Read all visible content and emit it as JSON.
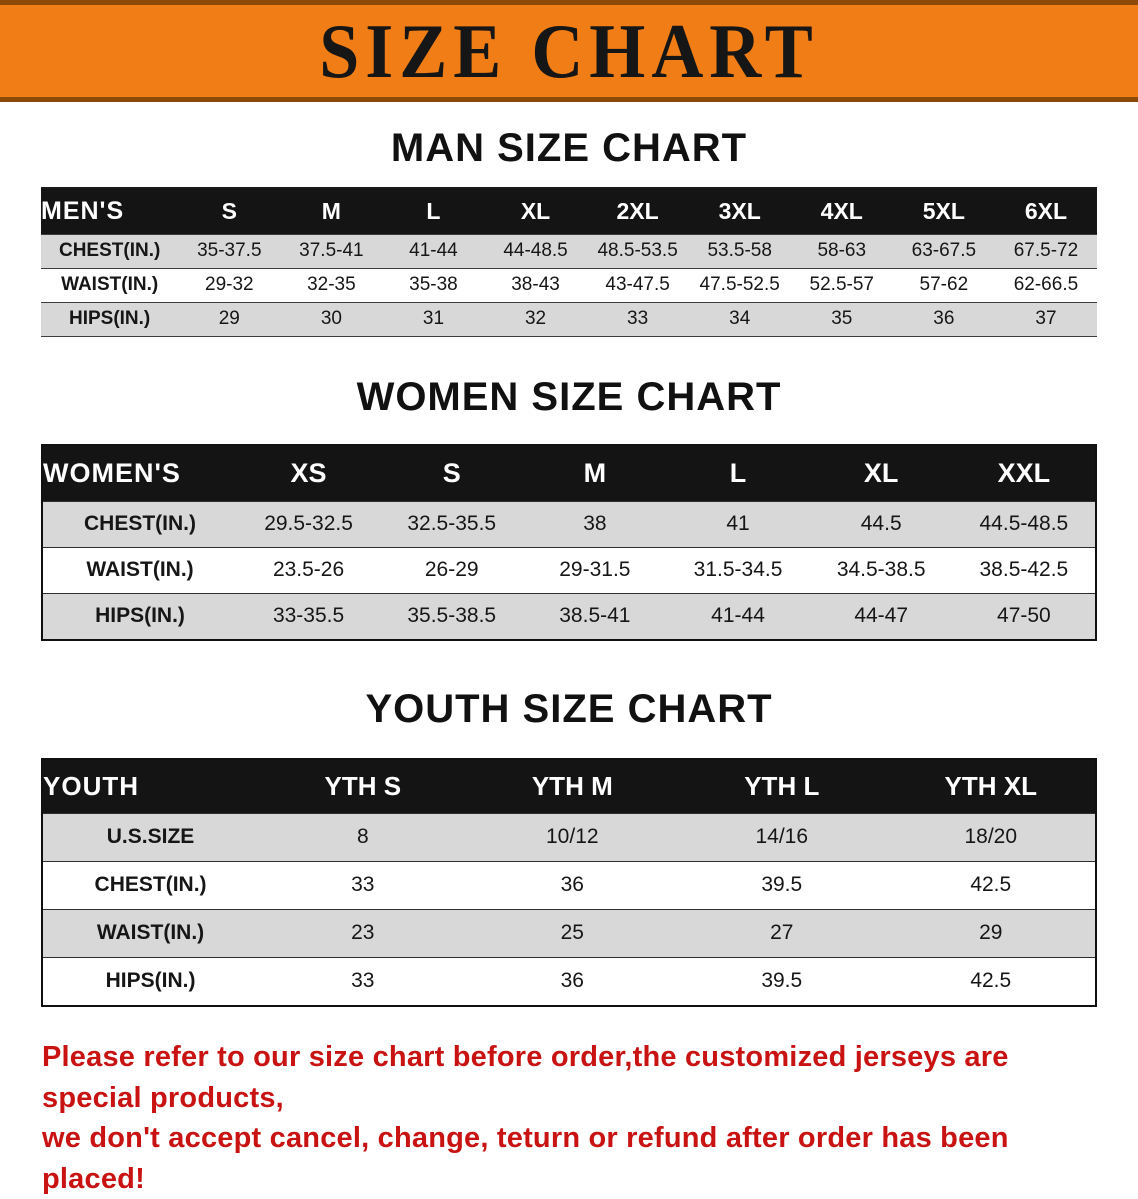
{
  "banner": {
    "title": "SIZE CHART",
    "bg_color": "#f07d15",
    "border_color": "#8d4a06"
  },
  "colors": {
    "table_header_bg": "#141414",
    "row_shade": "#d8d8d8",
    "footer_text": "#c91212"
  },
  "chart_data": [
    {
      "type": "table",
      "title": "MAN SIZE CHART",
      "header": [
        "MEN'S",
        "S",
        "M",
        "L",
        "XL",
        "2XL",
        "3XL",
        "4XL",
        "5XL",
        "6XL"
      ],
      "rows": [
        [
          "CHEST(IN.)",
          "35-37.5",
          "37.5-41",
          "41-44",
          "44-48.5",
          "48.5-53.5",
          "53.5-58",
          "58-63",
          "63-67.5",
          "67.5-72"
        ],
        [
          "WAIST(IN.)",
          "29-32",
          "32-35",
          "35-38",
          "38-43",
          "43-47.5",
          "47.5-52.5",
          "52.5-57",
          "57-62",
          "62-66.5"
        ],
        [
          "HIPS(IN.)",
          "29",
          "30",
          "31",
          "32",
          "33",
          "34",
          "35",
          "36",
          "37"
        ]
      ]
    },
    {
      "type": "table",
      "title": "WOMEN SIZE CHART",
      "header": [
        "WOMEN'S",
        "XS",
        "S",
        "M",
        "L",
        "XL",
        "XXL"
      ],
      "rows": [
        [
          "CHEST(IN.)",
          "29.5-32.5",
          "32.5-35.5",
          "38",
          "41",
          "44.5",
          "44.5-48.5"
        ],
        [
          "WAIST(IN.)",
          "23.5-26",
          "26-29",
          "29-31.5",
          "31.5-34.5",
          "34.5-38.5",
          "38.5-42.5"
        ],
        [
          "HIPS(IN.)",
          "33-35.5",
          "35.5-38.5",
          "38.5-41",
          "41-44",
          "44-47",
          "47-50"
        ]
      ]
    },
    {
      "type": "table",
      "title": "YOUTH SIZE CHART",
      "header": [
        "YOUTH",
        "YTH S",
        "YTH M",
        "YTH L",
        "YTH XL"
      ],
      "rows": [
        [
          "U.S.SIZE",
          "8",
          "10/12",
          "14/16",
          "18/20"
        ],
        [
          "CHEST(IN.)",
          "33",
          "36",
          "39.5",
          "42.5"
        ],
        [
          "WAIST(IN.)",
          "23",
          "25",
          "27",
          "29"
        ],
        [
          "HIPS(IN.)",
          "33",
          "36",
          "39.5",
          "42.5"
        ]
      ]
    }
  ],
  "footer": {
    "line1": "Please refer to our size chart before order,the customized jerseys are special products,",
    "line2": "we don't accept cancel, change, teturn or refund after order has been placed!"
  }
}
